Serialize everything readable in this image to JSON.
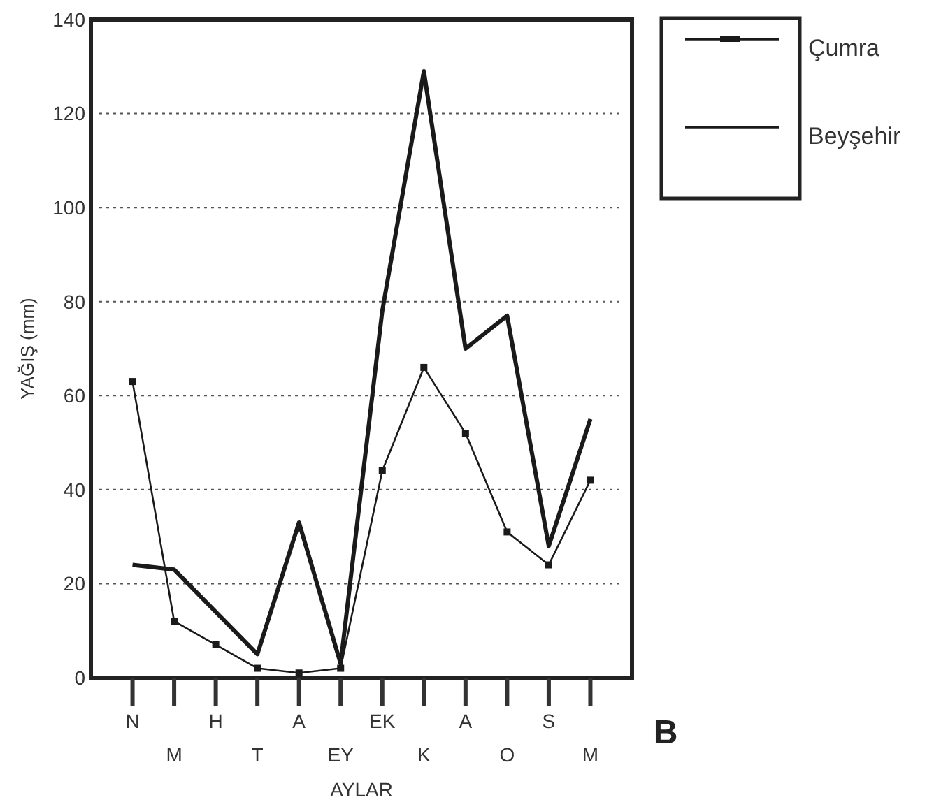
{
  "chart_data": {
    "type": "line",
    "xlabel": "AYLAR",
    "ylabel": "YAĞIŞ (mm)",
    "categories": [
      "N",
      "M",
      "H",
      "T",
      "A",
      "EY",
      "EK",
      "K",
      "A",
      "O",
      "S",
      "M"
    ],
    "series": [
      {
        "name": "Çumra",
        "color": "#1a1a1a",
        "marker": "square",
        "values": [
          63,
          12,
          7,
          2,
          1,
          2,
          44,
          66,
          52,
          31,
          24,
          42
        ]
      },
      {
        "name": "Beyşehir",
        "color": "#1a1a1a",
        "marker": "none",
        "values": [
          24,
          23,
          14,
          5,
          33,
          3,
          78,
          129,
          70,
          77,
          28,
          55
        ]
      }
    ],
    "ylim": [
      0,
      140
    ],
    "yticks": [
      0,
      20,
      40,
      60,
      80,
      100,
      120,
      140
    ],
    "grid": "y",
    "legend": "right",
    "line_style": "solid",
    "annotations": [
      "B"
    ]
  }
}
